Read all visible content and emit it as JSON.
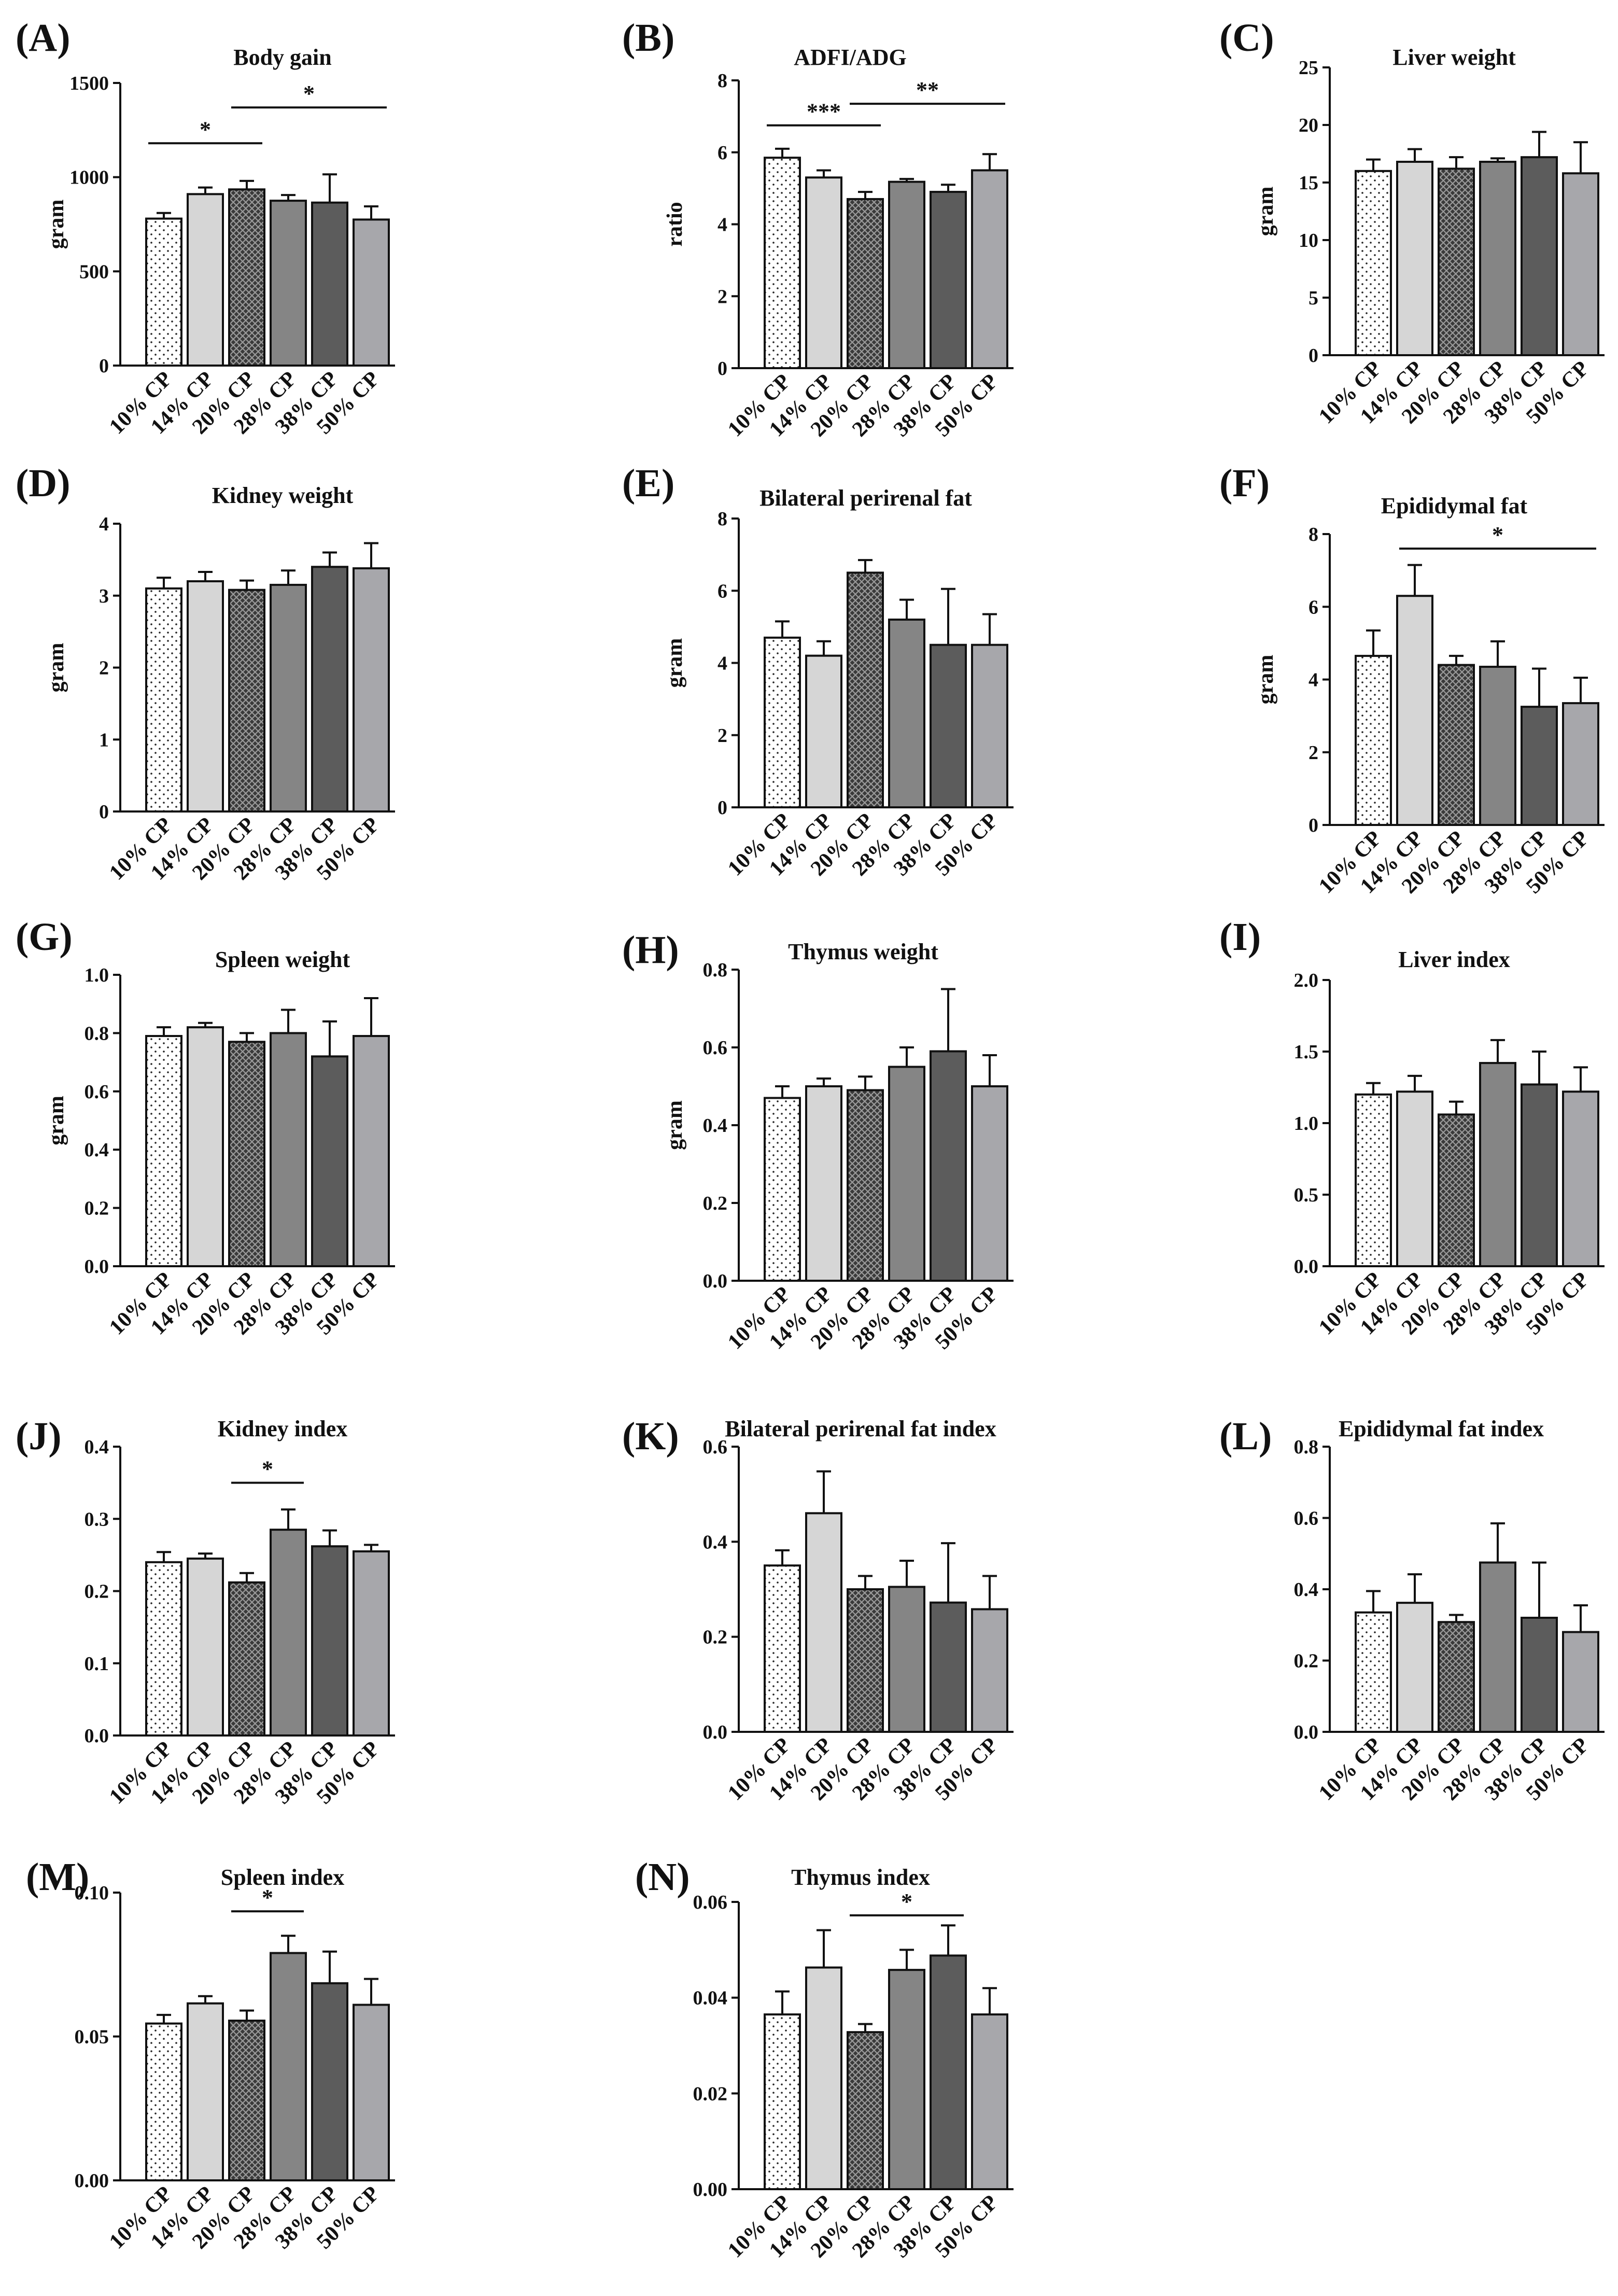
{
  "figure": {
    "categories": [
      "10% CP",
      "14% CP",
      "20% CP",
      "28% CP",
      "38% CP",
      "50% CP"
    ],
    "bar_styles": [
      {
        "name": "10% CP",
        "fill": "#ffffff",
        "pattern": "dots"
      },
      {
        "name": "14% CP",
        "fill": "#d6d6d6",
        "pattern": "none"
      },
      {
        "name": "20% CP",
        "fill": "#3a3a3a",
        "pattern": "crosshatch"
      },
      {
        "name": "28% CP",
        "fill": "#858585",
        "pattern": "none"
      },
      {
        "name": "38% CP",
        "fill": "#5c5c5c",
        "pattern": "none"
      },
      {
        "name": "50% CP",
        "fill": "#a7a7ab",
        "pattern": "none"
      }
    ]
  },
  "chart_data": [
    {
      "type": "bar",
      "label": "(A)",
      "title": "Body gain",
      "ylabel": "gram",
      "ylim": [
        0,
        1500
      ],
      "ticks": [
        0,
        500,
        1000,
        1500
      ],
      "tick_labels": [
        "0",
        "500",
        "1000",
        "1500"
      ],
      "categories": [
        "10% CP",
        "14% CP",
        "20% CP",
        "28% CP",
        "38% CP",
        "50% CP"
      ],
      "values": [
        780,
        910,
        935,
        875,
        865,
        775
      ],
      "errors": [
        30,
        35,
        45,
        30,
        150,
        70
      ],
      "significance": [
        {
          "from": 0,
          "to": 2,
          "label": "*",
          "y": 1180
        },
        {
          "from": 2,
          "to": 5,
          "label": "*",
          "y": 1370
        }
      ]
    },
    {
      "type": "bar",
      "label": "(B)",
      "title": "ADFI/ADG",
      "ylabel": "ratio",
      "ylim": [
        0,
        8
      ],
      "ticks": [
        0,
        2,
        4,
        6,
        8
      ],
      "tick_labels": [
        "0",
        "2",
        "4",
        "6",
        "8"
      ],
      "categories": [
        "10% CP",
        "14% CP",
        "20% CP",
        "28% CP",
        "38% CP",
        "50% CP"
      ],
      "values": [
        5.85,
        5.3,
        4.7,
        5.18,
        4.9,
        5.5
      ],
      "errors": [
        0.25,
        0.2,
        0.2,
        0.08,
        0.2,
        0.45
      ],
      "significance": [
        {
          "from": 0,
          "to": 2,
          "label": "***",
          "y": 6.75
        },
        {
          "from": 2,
          "to": 5,
          "label": "**",
          "y": 7.35
        }
      ]
    },
    {
      "type": "bar",
      "label": "(C)",
      "title": "Liver weight",
      "ylabel": "gram",
      "ylim": [
        0,
        25
      ],
      "ticks": [
        0,
        5,
        10,
        15,
        20,
        25
      ],
      "tick_labels": [
        "0",
        "5",
        "10",
        "15",
        "20",
        "25"
      ],
      "categories": [
        "10% CP",
        "14% CP",
        "20% CP",
        "28% CP",
        "38% CP",
        "50% CP"
      ],
      "values": [
        16.0,
        16.8,
        16.2,
        16.8,
        17.2,
        15.8
      ],
      "errors": [
        1.0,
        1.1,
        1.0,
        0.3,
        2.2,
        2.7
      ],
      "significance": []
    },
    {
      "type": "bar",
      "label": "(D)",
      "title": "Kidney weight",
      "ylabel": "gram",
      "ylim": [
        0,
        4
      ],
      "ticks": [
        0,
        1,
        2,
        3,
        4
      ],
      "tick_labels": [
        "0",
        "1",
        "2",
        "3",
        "4"
      ],
      "categories": [
        "10% CP",
        "14% CP",
        "20% CP",
        "28% CP",
        "38% CP",
        "50% CP"
      ],
      "values": [
        3.1,
        3.2,
        3.08,
        3.15,
        3.4,
        3.38
      ],
      "errors": [
        0.15,
        0.13,
        0.13,
        0.2,
        0.2,
        0.35
      ],
      "significance": []
    },
    {
      "type": "bar",
      "label": "(E)",
      "title": "Bilateral perirenal fat",
      "ylabel": "gram",
      "ylim": [
        0,
        8
      ],
      "ticks": [
        0,
        2,
        4,
        6,
        8
      ],
      "tick_labels": [
        "0",
        "2",
        "4",
        "6",
        "8"
      ],
      "categories": [
        "10% CP",
        "14% CP",
        "20% CP",
        "28% CP",
        "38% CP",
        "50% CP"
      ],
      "values": [
        4.7,
        4.2,
        6.5,
        5.2,
        4.5,
        4.5
      ],
      "errors": [
        0.45,
        0.4,
        0.35,
        0.55,
        1.55,
        0.85
      ],
      "significance": []
    },
    {
      "type": "bar",
      "label": "(F)",
      "title": "Epididymal fat",
      "ylabel": "gram",
      "ylim": [
        0,
        8
      ],
      "ticks": [
        0,
        2,
        4,
        6,
        8
      ],
      "tick_labels": [
        "0",
        "2",
        "4",
        "6",
        "8"
      ],
      "categories": [
        "10% CP",
        "14% CP",
        "20% CP",
        "28% CP",
        "38% CP",
        "50% CP"
      ],
      "values": [
        4.65,
        6.3,
        4.4,
        4.35,
        3.25,
        3.35
      ],
      "errors": [
        0.7,
        0.85,
        0.25,
        0.7,
        1.05,
        0.7
      ],
      "significance": [
        {
          "from": 1,
          "to": 5,
          "label": "*",
          "y": 7.6
        }
      ]
    },
    {
      "type": "bar",
      "label": "(G)",
      "title": "Spleen weight",
      "ylabel": "gram",
      "ylim": [
        0,
        1.0
      ],
      "ticks": [
        0,
        0.2,
        0.4,
        0.6,
        0.8,
        1.0
      ],
      "tick_labels": [
        "0.0",
        "0.2",
        "0.4",
        "0.6",
        "0.8",
        "1.0"
      ],
      "categories": [
        "10% CP",
        "14% CP",
        "20% CP",
        "28% CP",
        "38% CP",
        "50% CP"
      ],
      "values": [
        0.79,
        0.82,
        0.77,
        0.8,
        0.72,
        0.79
      ],
      "errors": [
        0.03,
        0.015,
        0.03,
        0.08,
        0.12,
        0.13
      ],
      "significance": []
    },
    {
      "type": "bar",
      "label": "(H)",
      "title": "Thymus weight",
      "ylabel": "gram",
      "ylim": [
        0,
        0.8
      ],
      "ticks": [
        0,
        0.2,
        0.4,
        0.6,
        0.8
      ],
      "tick_labels": [
        "0.0",
        "0.2",
        "0.4",
        "0.6",
        "0.8"
      ],
      "categories": [
        "10% CP",
        "14% CP",
        "20% CP",
        "28% CP",
        "38% CP",
        "50% CP"
      ],
      "values": [
        0.47,
        0.5,
        0.49,
        0.55,
        0.59,
        0.5
      ],
      "errors": [
        0.03,
        0.02,
        0.035,
        0.05,
        0.16,
        0.08
      ],
      "significance": []
    },
    {
      "type": "bar",
      "label": "(I)",
      "title": "Liver index",
      "ylabel": "",
      "ylim": [
        0,
        2.0
      ],
      "ticks": [
        0,
        0.5,
        1.0,
        1.5,
        2.0
      ],
      "tick_labels": [
        "0.0",
        "0.5",
        "1.0",
        "1.5",
        "2.0"
      ],
      "categories": [
        "10% CP",
        "14% CP",
        "20% CP",
        "28% CP",
        "38% CP",
        "50% CP"
      ],
      "values": [
        1.2,
        1.22,
        1.06,
        1.42,
        1.27,
        1.22
      ],
      "errors": [
        0.08,
        0.11,
        0.09,
        0.16,
        0.23,
        0.17
      ],
      "significance": []
    },
    {
      "type": "bar",
      "label": "(J)",
      "title": "Kidney index",
      "ylabel": "",
      "ylim": [
        0,
        0.4
      ],
      "ticks": [
        0,
        0.1,
        0.2,
        0.3,
        0.4
      ],
      "tick_labels": [
        "0.0",
        "0.1",
        "0.2",
        "0.3",
        "0.4"
      ],
      "categories": [
        "10% CP",
        "14% CP",
        "20% CP",
        "28% CP",
        "38% CP",
        "50% CP"
      ],
      "values": [
        0.24,
        0.245,
        0.212,
        0.285,
        0.262,
        0.255
      ],
      "errors": [
        0.014,
        0.007,
        0.013,
        0.028,
        0.022,
        0.009
      ],
      "significance": [
        {
          "from": 2,
          "to": 3,
          "label": "*",
          "y": 0.35
        }
      ]
    },
    {
      "type": "bar",
      "label": "(K)",
      "title": "Bilateral perirenal fat index",
      "ylabel": "",
      "ylim": [
        0,
        0.6
      ],
      "ticks": [
        0,
        0.2,
        0.4,
        0.6
      ],
      "tick_labels": [
        "0.0",
        "0.2",
        "0.4",
        "0.6"
      ],
      "categories": [
        "10% CP",
        "14% CP",
        "20% CP",
        "28% CP",
        "38% CP",
        "50% CP"
      ],
      "values": [
        0.35,
        0.46,
        0.3,
        0.305,
        0.272,
        0.258
      ],
      "errors": [
        0.032,
        0.088,
        0.028,
        0.055,
        0.125,
        0.07
      ],
      "significance": []
    },
    {
      "type": "bar",
      "label": "(L)",
      "title": "Epididymal fat index",
      "ylabel": "",
      "ylim": [
        0,
        0.8
      ],
      "ticks": [
        0,
        0.2,
        0.4,
        0.6,
        0.8
      ],
      "tick_labels": [
        "0.0",
        "0.2",
        "0.4",
        "0.6",
        "0.8"
      ],
      "categories": [
        "10% CP",
        "14% CP",
        "20% CP",
        "28% CP",
        "38% CP",
        "50% CP"
      ],
      "values": [
        0.335,
        0.362,
        0.308,
        0.475,
        0.32,
        0.28
      ],
      "errors": [
        0.06,
        0.08,
        0.02,
        0.11,
        0.155,
        0.075
      ],
      "significance": []
    },
    {
      "type": "bar",
      "label": "(M)",
      "title": "Spleen index",
      "ylabel": "",
      "ylim": [
        0,
        0.1
      ],
      "ticks": [
        0,
        0.05,
        0.1
      ],
      "tick_labels": [
        "0.00",
        "0.05",
        "0.10"
      ],
      "categories": [
        "10% CP",
        "14% CP",
        "20% CP",
        "28% CP",
        "38% CP",
        "50% CP"
      ],
      "values": [
        0.0545,
        0.0615,
        0.0555,
        0.079,
        0.0685,
        0.061
      ],
      "errors": [
        0.003,
        0.0025,
        0.0035,
        0.006,
        0.011,
        0.009
      ],
      "significance": [
        {
          "from": 2,
          "to": 3,
          "label": "*",
          "y": 0.0935
        }
      ]
    },
    {
      "type": "bar",
      "label": "(N)",
      "title": "Thymus index",
      "ylabel": "",
      "ylim": [
        0,
        0.06
      ],
      "ticks": [
        0,
        0.02,
        0.04,
        0.06
      ],
      "tick_labels": [
        "0.00",
        "0.02",
        "0.04",
        "0.06"
      ],
      "categories": [
        "10% CP",
        "14% CP",
        "20% CP",
        "28% CP",
        "38% CP",
        "50% CP"
      ],
      "values": [
        0.0365,
        0.0463,
        0.0328,
        0.0458,
        0.0488,
        0.0365
      ],
      "errors": [
        0.0048,
        0.0078,
        0.0017,
        0.0042,
        0.0063,
        0.0055
      ],
      "significance": [
        {
          "from": 2,
          "to": 4,
          "label": "*",
          "y": 0.0572
        }
      ]
    }
  ]
}
